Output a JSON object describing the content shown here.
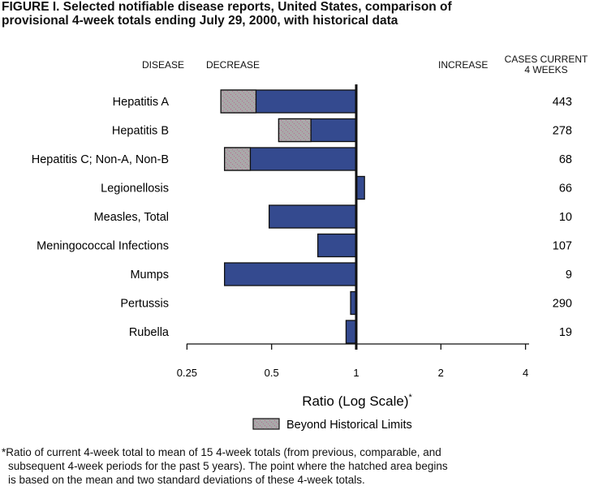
{
  "title_line1": "FIGURE I.  Selected notifiable disease reports, United States, comparison of",
  "title_line2": "provisional 4-week totals ending July 29, 2000, with historical data",
  "headers": {
    "disease": "DISEASE",
    "decrease": "DECREASE",
    "increase": "INCREASE",
    "cases_line1": "CASES CURRENT",
    "cases_line2": "4 WEEKS"
  },
  "colors": {
    "bar": "#344a8f",
    "hatch": "#a9a9a9",
    "hatch_marks": "#c0508a"
  },
  "chart_data": {
    "type": "bar",
    "orientation": "horizontal",
    "xscale": "log2",
    "xlim": [
      0.25,
      4
    ],
    "xticks": [
      "0.25",
      "0.5",
      "1",
      "2",
      "4"
    ],
    "xlabel": "Ratio (Log Scale)",
    "xlabel_sup": "*",
    "categories": [
      "Hepatitis A",
      "Hepatitis B",
      "Hepatitis C; Non-A, Non-B",
      "Legionellosis",
      "Measles, Total",
      "Meningococcal Infections",
      "Mumps",
      "Pertussis",
      "Rubella"
    ],
    "ratios": [
      0.33,
      0.53,
      0.34,
      1.07,
      0.49,
      0.73,
      0.34,
      0.955,
      0.92
    ],
    "historical_limit": [
      0.44,
      0.69,
      0.42,
      null,
      null,
      null,
      null,
      null,
      null
    ],
    "cases": [
      "443",
      "278",
      "68",
      "66",
      "10",
      "107",
      "9",
      "290",
      "19"
    ],
    "legend": {
      "label": "Beyond Historical Limits",
      "position": "bottom"
    }
  },
  "footnote": [
    "*Ratio of current 4-week total to mean of 15 4-week totals (from previous, comparable, and",
    "subsequent 4-week periods for the past 5 years). The point where the hatched area begins",
    "is based on the mean and two standard deviations of these 4-week totals."
  ]
}
